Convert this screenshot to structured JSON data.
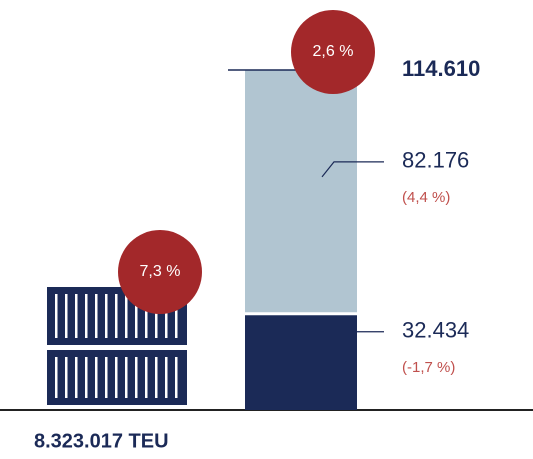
{
  "chart_data": {
    "type": "stacked_bar",
    "total": {
      "value": 114610,
      "label": "114.610"
    },
    "total_change": {
      "value": 2.6,
      "label": "2,6 %"
    },
    "segments": [
      {
        "value": 32434,
        "label": "32.434",
        "change": -1.7,
        "change_label": "(-1,7 %)",
        "color": "#1b2a57"
      },
      {
        "value": 82176,
        "label": "82.176",
        "change": 4.4,
        "change_label": "(4,4 %)",
        "color": "#b1c5d1"
      }
    ],
    "teu": {
      "value": 8323017,
      "label": "8.323.017 TEU"
    },
    "teu_change": {
      "value": 7.3,
      "label": "7,3 %"
    },
    "badge_color": "#a3282a",
    "change_color": "#c0504d"
  }
}
